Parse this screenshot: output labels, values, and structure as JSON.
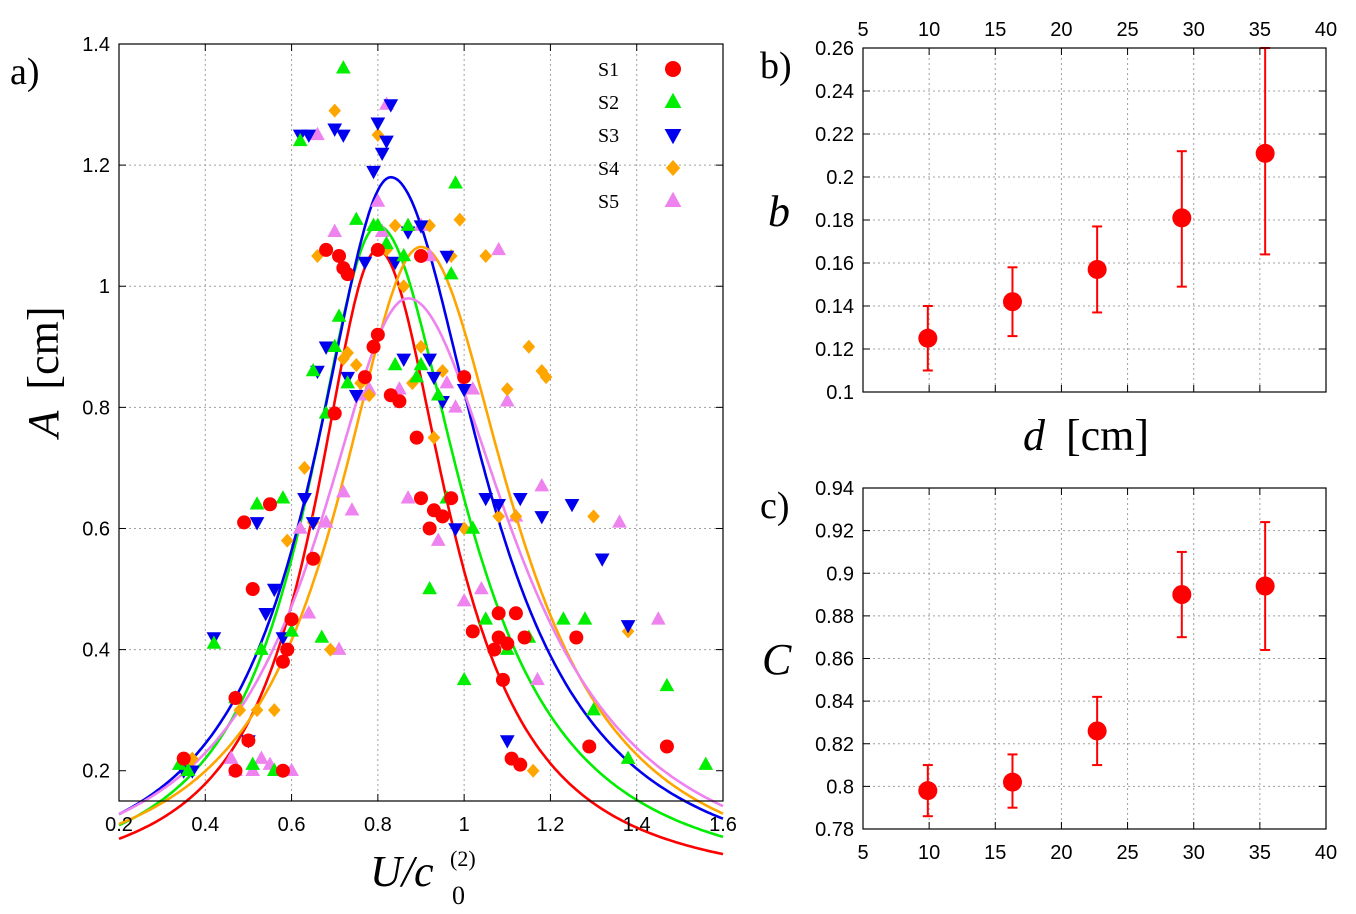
{
  "panels": {
    "a": {
      "label": "a)",
      "xlabel": "U/c",
      "xlabel_sub": "0",
      "xlabel_sup": "(2)",
      "ylabel_var": "A",
      "ylabel_unit": "[cm]"
    },
    "b": {
      "label": "b)",
      "xlabel_var": "d",
      "xlabel_unit": "[cm]",
      "ylabel": "b"
    },
    "c": {
      "label": "c)",
      "ylabel": "C"
    }
  },
  "chart_data": [
    {
      "id": "a",
      "type": "scatter",
      "title": "",
      "xlabel": "U/c0(2)",
      "ylabel": "A [cm]",
      "xlim": [
        0.2,
        1.6
      ],
      "ylim": [
        0.15,
        1.4
      ],
      "xticks": [
        0.2,
        0.4,
        0.6,
        0.8,
        1,
        1.2,
        1.4,
        1.6
      ],
      "xtick_labels": [
        "0.2",
        "0.4",
        "0.6",
        "0.8",
        "1",
        "1.2",
        "1.4",
        "1.6"
      ],
      "yticks": [
        0.2,
        0.4,
        0.6,
        0.8,
        1,
        1.2,
        1.4
      ],
      "ytick_labels": [
        "0.2",
        "0.4",
        "0.6",
        "0.8",
        "1",
        "1.2",
        "1.4"
      ],
      "grid": true,
      "legend_position": "top-right",
      "series": [
        {
          "name": "S1",
          "marker": "circle",
          "color": "#ff0000",
          "fit": {
            "peak_x": 0.8,
            "peak_y": 1.06,
            "hw_left": 0.18,
            "hw_right": 0.2
          },
          "points": [
            [
              0.35,
              0.22
            ],
            [
              0.47,
              0.2
            ],
            [
              0.47,
              0.32
            ],
            [
              0.49,
              0.61
            ],
            [
              0.5,
              0.25
            ],
            [
              0.51,
              0.5
            ],
            [
              0.55,
              0.64
            ],
            [
              0.58,
              0.38
            ],
            [
              0.59,
              0.4
            ],
            [
              0.6,
              0.45
            ],
            [
              0.58,
              0.2
            ],
            [
              0.65,
              0.55
            ],
            [
              0.68,
              1.06
            ],
            [
              0.7,
              0.79
            ],
            [
              0.71,
              1.05
            ],
            [
              0.72,
              1.03
            ],
            [
              0.73,
              1.02
            ],
            [
              0.77,
              0.85
            ],
            [
              0.79,
              0.9
            ],
            [
              0.8,
              0.92
            ],
            [
              0.8,
              1.06
            ],
            [
              0.83,
              0.82
            ],
            [
              0.85,
              0.81
            ],
            [
              0.89,
              0.75
            ],
            [
              0.9,
              1.05
            ],
            [
              0.9,
              0.65
            ],
            [
              0.92,
              0.6
            ],
            [
              0.93,
              0.63
            ],
            [
              0.95,
              0.62
            ],
            [
              0.97,
              0.65
            ],
            [
              1.0,
              0.85
            ],
            [
              1.02,
              0.43
            ],
            [
              1.07,
              0.4
            ],
            [
              1.08,
              0.42
            ],
            [
              1.08,
              0.46
            ],
            [
              1.09,
              0.35
            ],
            [
              1.1,
              0.41
            ],
            [
              1.11,
              0.22
            ],
            [
              1.12,
              0.46
            ],
            [
              1.13,
              0.21
            ],
            [
              1.14,
              0.42
            ],
            [
              1.26,
              0.42
            ],
            [
              1.29,
              0.24
            ],
            [
              1.47,
              0.24
            ]
          ]
        },
        {
          "name": "S2",
          "marker": "triangle-up",
          "color": "#00ee00",
          "fit": {
            "peak_x": 0.8,
            "peak_y": 1.1,
            "hw_left": 0.2,
            "hw_right": 0.24
          },
          "points": [
            [
              0.34,
              0.21
            ],
            [
              0.36,
              0.2
            ],
            [
              0.42,
              0.41
            ],
            [
              0.47,
              0.32
            ],
            [
              0.51,
              0.21
            ],
            [
              0.52,
              0.64
            ],
            [
              0.53,
              0.4
            ],
            [
              0.56,
              0.2
            ],
            [
              0.58,
              0.65
            ],
            [
              0.6,
              0.43
            ],
            [
              0.62,
              1.24
            ],
            [
              0.65,
              0.86
            ],
            [
              0.67,
              0.42
            ],
            [
              0.68,
              0.79
            ],
            [
              0.7,
              0.9
            ],
            [
              0.71,
              0.95
            ],
            [
              0.72,
              1.36
            ],
            [
              0.73,
              0.84
            ],
            [
              0.75,
              1.11
            ],
            [
              0.79,
              1.1
            ],
            [
              0.8,
              1.1
            ],
            [
              0.82,
              1.07
            ],
            [
              0.84,
              0.87
            ],
            [
              0.86,
              1.05
            ],
            [
              0.87,
              1.1
            ],
            [
              0.89,
              0.85
            ],
            [
              0.9,
              0.87
            ],
            [
              0.92,
              0.5
            ],
            [
              0.94,
              0.82
            ],
            [
              0.96,
              0.65
            ],
            [
              0.97,
              1.02
            ],
            [
              0.98,
              1.17
            ],
            [
              1.0,
              0.35
            ],
            [
              1.02,
              0.6
            ],
            [
              1.05,
              0.45
            ],
            [
              1.1,
              0.4
            ],
            [
              1.15,
              0.42
            ],
            [
              1.23,
              0.45
            ],
            [
              1.28,
              0.45
            ],
            [
              1.3,
              0.3
            ],
            [
              1.38,
              0.22
            ],
            [
              1.47,
              0.34
            ],
            [
              1.56,
              0.21
            ]
          ]
        },
        {
          "name": "S3",
          "marker": "triangle-down",
          "color": "#0000ee",
          "fit": {
            "peak_x": 0.83,
            "peak_y": 1.18,
            "hw_left": 0.22,
            "hw_right": 0.26
          },
          "points": [
            [
              0.35,
              0.2
            ],
            [
              0.37,
              0.2
            ],
            [
              0.42,
              0.42
            ],
            [
              0.5,
              0.25
            ],
            [
              0.52,
              0.61
            ],
            [
              0.54,
              0.46
            ],
            [
              0.56,
              0.5
            ],
            [
              0.58,
              0.42
            ],
            [
              0.62,
              1.25
            ],
            [
              0.63,
              0.65
            ],
            [
              0.64,
              1.25
            ],
            [
              0.65,
              0.61
            ],
            [
              0.66,
              0.86
            ],
            [
              0.68,
              0.9
            ],
            [
              0.7,
              1.26
            ],
            [
              0.72,
              1.25
            ],
            [
              0.73,
              0.85
            ],
            [
              0.75,
              0.82
            ],
            [
              0.77,
              1.04
            ],
            [
              0.79,
              1.19
            ],
            [
              0.8,
              1.27
            ],
            [
              0.81,
              1.22
            ],
            [
              0.82,
              1.24
            ],
            [
              0.83,
              1.3
            ],
            [
              0.84,
              1.04
            ],
            [
              0.86,
              0.88
            ],
            [
              0.87,
              1.09
            ],
            [
              0.9,
              1.1
            ],
            [
              0.92,
              0.88
            ],
            [
              0.93,
              0.85
            ],
            [
              0.95,
              0.81
            ],
            [
              0.96,
              1.05
            ],
            [
              0.98,
              0.6
            ],
            [
              1.0,
              0.83
            ],
            [
              1.05,
              0.65
            ],
            [
              1.08,
              0.64
            ],
            [
              1.1,
              0.25
            ],
            [
              1.13,
              0.65
            ],
            [
              1.18,
              0.62
            ],
            [
              1.25,
              0.64
            ],
            [
              1.32,
              0.55
            ],
            [
              1.38,
              0.44
            ]
          ]
        },
        {
          "name": "S4",
          "marker": "diamond",
          "color": "#ffa500",
          "fit": {
            "peak_x": 0.9,
            "peak_y": 1.065,
            "hw_left": 0.24,
            "hw_right": 0.26
          },
          "points": [
            [
              0.36,
              0.21
            ],
            [
              0.37,
              0.22
            ],
            [
              0.48,
              0.3
            ],
            [
              0.52,
              0.3
            ],
            [
              0.56,
              0.3
            ],
            [
              0.59,
              0.58
            ],
            [
              0.63,
              0.7
            ],
            [
              0.65,
              0.61
            ],
            [
              0.66,
              1.05
            ],
            [
              0.69,
              0.4
            ],
            [
              0.7,
              1.29
            ],
            [
              0.72,
              0.88
            ],
            [
              0.73,
              0.89
            ],
            [
              0.75,
              0.87
            ],
            [
              0.76,
              0.84
            ],
            [
              0.78,
              0.82
            ],
            [
              0.8,
              1.25
            ],
            [
              0.82,
              1.06
            ],
            [
              0.84,
              1.1
            ],
            [
              0.86,
              1.0
            ],
            [
              0.88,
              0.84
            ],
            [
              0.9,
              0.9
            ],
            [
              0.92,
              1.1
            ],
            [
              0.93,
              0.75
            ],
            [
              0.95,
              0.86
            ],
            [
              0.97,
              1.05
            ],
            [
              0.99,
              1.11
            ],
            [
              1.0,
              0.6
            ],
            [
              1.05,
              1.05
            ],
            [
              1.08,
              0.62
            ],
            [
              1.1,
              0.83
            ],
            [
              1.12,
              0.62
            ],
            [
              1.15,
              0.9
            ],
            [
              1.16,
              0.2
            ],
            [
              1.18,
              0.86
            ],
            [
              1.19,
              0.85
            ],
            [
              1.3,
              0.62
            ],
            [
              1.38,
              0.43
            ]
          ]
        },
        {
          "name": "S5",
          "marker": "triangle-up",
          "color": "#ee82ee",
          "fit": {
            "peak_x": 0.87,
            "peak_y": 0.98,
            "hw_left": 0.26,
            "hw_right": 0.3
          },
          "points": [
            [
              0.46,
              0.22
            ],
            [
              0.47,
              0.2
            ],
            [
              0.51,
              0.2
            ],
            [
              0.53,
              0.22
            ],
            [
              0.55,
              0.21
            ],
            [
              0.6,
              0.2
            ],
            [
              0.62,
              0.6
            ],
            [
              0.64,
              0.46
            ],
            [
              0.66,
              1.25
            ],
            [
              0.68,
              0.61
            ],
            [
              0.7,
              1.09
            ],
            [
              0.71,
              0.4
            ],
            [
              0.72,
              0.66
            ],
            [
              0.74,
              0.63
            ],
            [
              0.76,
              0.82
            ],
            [
              0.78,
              0.83
            ],
            [
              0.8,
              1.14
            ],
            [
              0.81,
              1.09
            ],
            [
              0.82,
              1.3
            ],
            [
              0.85,
              0.83
            ],
            [
              0.87,
              0.65
            ],
            [
              0.9,
              1.1
            ],
            [
              0.92,
              1.05
            ],
            [
              0.94,
              0.58
            ],
            [
              0.96,
              0.84
            ],
            [
              0.98,
              0.8
            ],
            [
              1.0,
              0.48
            ],
            [
              1.02,
              0.83
            ],
            [
              1.04,
              0.5
            ],
            [
              1.08,
              1.06
            ],
            [
              1.1,
              0.81
            ],
            [
              1.12,
              0.62
            ],
            [
              1.17,
              0.35
            ],
            [
              1.18,
              0.67
            ],
            [
              1.36,
              0.61
            ],
            [
              1.45,
              0.45
            ]
          ]
        }
      ]
    },
    {
      "id": "b",
      "type": "scatter",
      "title": "",
      "xlabel": "d [cm]",
      "ylabel": "b",
      "xlim": [
        5,
        40
      ],
      "ylim": [
        0.1,
        0.26
      ],
      "x_axis_position": "top",
      "xticks": [
        5,
        10,
        15,
        20,
        25,
        30,
        35,
        40
      ],
      "xtick_labels": [
        "5",
        "10",
        "15",
        "20",
        "25",
        "30",
        "35",
        "40"
      ],
      "yticks": [
        0.1,
        0.12,
        0.14,
        0.16,
        0.18,
        0.2,
        0.22,
        0.24,
        0.26
      ],
      "ytick_labels": [
        "0.1",
        "0.12",
        "0.14",
        "0.16",
        "0.18",
        "0.2",
        "0.22",
        "0.24",
        "0.26"
      ],
      "grid": true,
      "series": [
        {
          "name": "b",
          "marker": "circle",
          "color": "#ff0000",
          "points": [
            [
              9.9,
              0.125,
              0.11,
              0.14
            ],
            [
              16.3,
              0.142,
              0.126,
              0.158
            ],
            [
              22.7,
              0.157,
              0.137,
              0.177
            ],
            [
              29.1,
              0.181,
              0.149,
              0.212
            ],
            [
              35.4,
              0.211,
              0.164,
              0.26
            ]
          ]
        }
      ]
    },
    {
      "id": "c",
      "type": "scatter",
      "title": "",
      "xlabel": "",
      "ylabel": "C",
      "xlim": [
        5,
        40
      ],
      "ylim": [
        0.78,
        0.94
      ],
      "xticks": [
        5,
        10,
        15,
        20,
        25,
        30,
        35,
        40
      ],
      "xtick_labels": [
        "5",
        "10",
        "15",
        "20",
        "25",
        "30",
        "35",
        "40"
      ],
      "yticks": [
        0.78,
        0.8,
        0.82,
        0.84,
        0.86,
        0.88,
        0.9,
        0.92,
        0.94
      ],
      "ytick_labels": [
        "0.78",
        "0.8",
        "0.82",
        "0.84",
        "0.86",
        "0.88",
        "0.9",
        "0.92",
        "0.94"
      ],
      "grid": true,
      "series": [
        {
          "name": "C",
          "marker": "circle",
          "color": "#ff0000",
          "points": [
            [
              9.9,
              0.798,
              0.786,
              0.81
            ],
            [
              16.3,
              0.802,
              0.79,
              0.815
            ],
            [
              22.7,
              0.826,
              0.81,
              0.842
            ],
            [
              29.1,
              0.89,
              0.87,
              0.91
            ],
            [
              35.4,
              0.894,
              0.864,
              0.924
            ]
          ]
        }
      ]
    }
  ]
}
